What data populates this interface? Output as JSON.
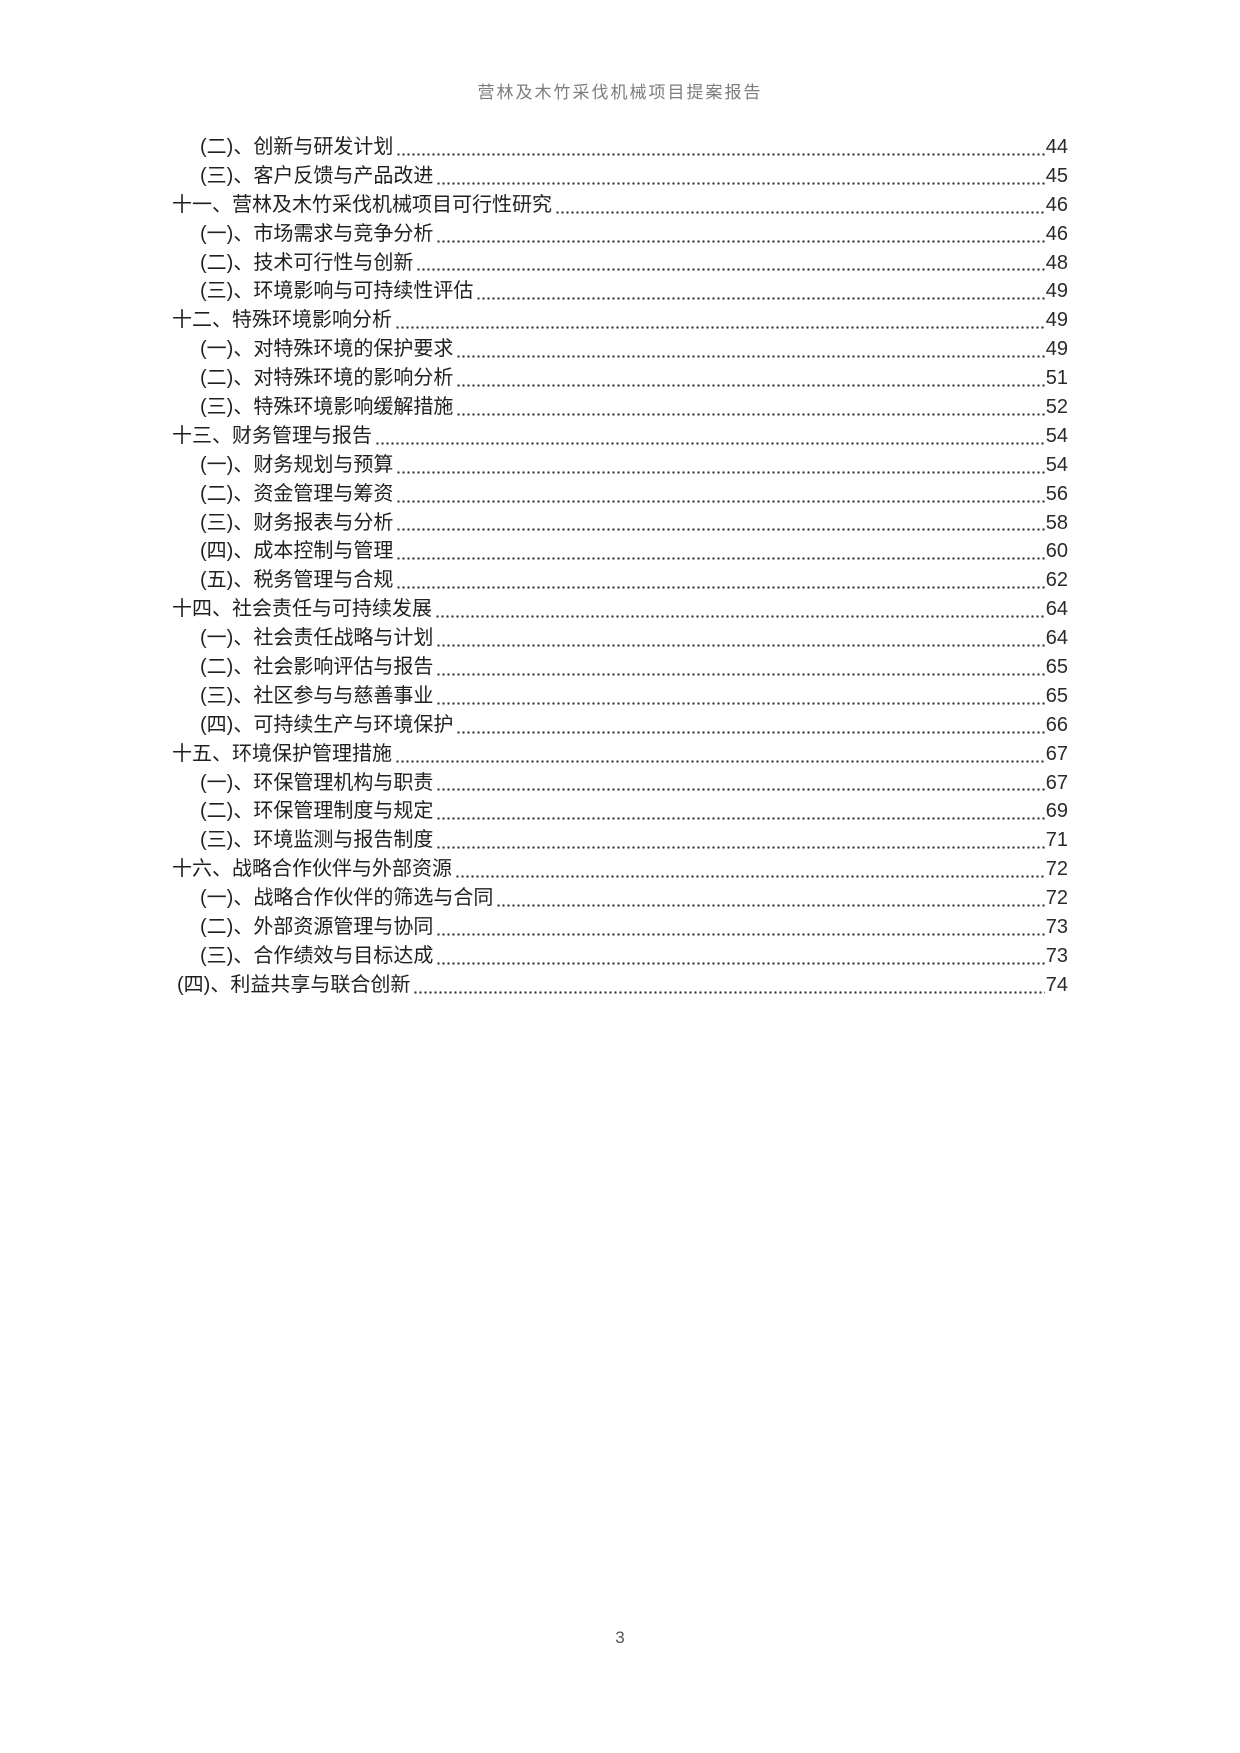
{
  "header": {
    "title": "营林及木竹采伐机械项目提案报告"
  },
  "footer": {
    "page_number": "3"
  },
  "toc": {
    "entries": [
      {
        "label": "(二)、创新与研发计划",
        "page": "44",
        "indent": "sub"
      },
      {
        "label": "(三)、客户反馈与产品改进",
        "page": "45",
        "indent": "sub"
      },
      {
        "label": "十一、营林及木竹采伐机械项目可行性研究",
        "page": "46",
        "indent": "chapter"
      },
      {
        "label": "(一)、市场需求与竞争分析",
        "page": "46",
        "indent": "sub"
      },
      {
        "label": "(二)、技术可行性与创新",
        "page": "48",
        "indent": "sub"
      },
      {
        "label": "(三)、环境影响与可持续性评估",
        "page": "49",
        "indent": "sub"
      },
      {
        "label": "十二、特殊环境影响分析",
        "page": "49",
        "indent": "chapter"
      },
      {
        "label": "(一)、对特殊环境的保护要求",
        "page": "49",
        "indent": "sub"
      },
      {
        "label": "(二)、对特殊环境的影响分析",
        "page": "51",
        "indent": "sub"
      },
      {
        "label": "(三)、特殊环境影响缓解措施",
        "page": "52",
        "indent": "sub"
      },
      {
        "label": "十三、财务管理与报告",
        "page": "54",
        "indent": "chapter"
      },
      {
        "label": "(一)、财务规划与预算",
        "page": "54",
        "indent": "sub"
      },
      {
        "label": "(二)、资金管理与筹资",
        "page": "56",
        "indent": "sub"
      },
      {
        "label": "(三)、财务报表与分析",
        "page": "58",
        "indent": "sub"
      },
      {
        "label": "(四)、成本控制与管理",
        "page": "60",
        "indent": "sub"
      },
      {
        "label": "(五)、税务管理与合规",
        "page": "62",
        "indent": "sub"
      },
      {
        "label": "十四、社会责任与可持续发展",
        "page": "64",
        "indent": "chapter"
      },
      {
        "label": "(一)、社会责任战略与计划",
        "page": "64",
        "indent": "sub"
      },
      {
        "label": "(二)、社会影响评估与报告",
        "page": "65",
        "indent": "sub"
      },
      {
        "label": "(三)、社区参与与慈善事业",
        "page": "65",
        "indent": "sub"
      },
      {
        "label": "(四)、可持续生产与环境保护",
        "page": "66",
        "indent": "sub"
      },
      {
        "label": "十五、环境保护管理措施",
        "page": "67",
        "indent": "chapter"
      },
      {
        "label": "(一)、环保管理机构与职责",
        "page": "67",
        "indent": "sub"
      },
      {
        "label": "(二)、环保管理制度与规定",
        "page": "69",
        "indent": "sub"
      },
      {
        "label": "(三)、环境监测与报告制度",
        "page": "71",
        "indent": "sub"
      },
      {
        "label": "十六、战略合作伙伴与外部资源",
        "page": "72",
        "indent": "chapter"
      },
      {
        "label": "(一)、战略合作伙伴的筛选与合同",
        "page": "72",
        "indent": "sub"
      },
      {
        "label": "(二)、外部资源管理与协同",
        "page": "73",
        "indent": "sub"
      },
      {
        "label": "(三)、合作绩效与目标达成",
        "page": "73",
        "indent": "sub"
      },
      {
        "label": "(四)、利益共享与联合创新",
        "page": "74",
        "indent": "sub-flush"
      }
    ]
  },
  "colors": {
    "text": "#1f1f1f",
    "header_text": "#7d7d7d",
    "dot_leader": "#3c3c3c",
    "background": "#ffffff"
  }
}
